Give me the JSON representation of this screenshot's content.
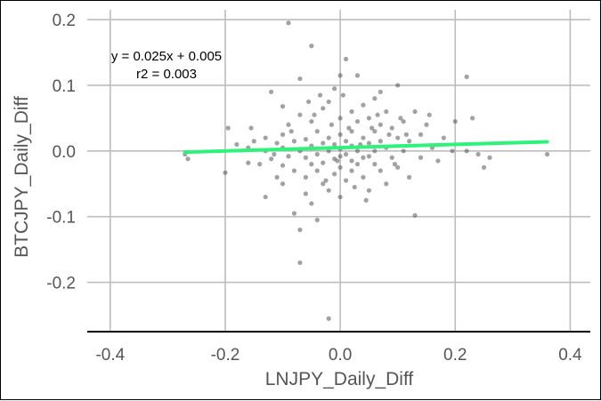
{
  "chart_data": {
    "type": "scatter",
    "title": "",
    "xlabel": "LNJPY_Daily_Diff",
    "ylabel": "BTCJPY_Daily_Diff",
    "xlim": [
      -0.44,
      0.435
    ],
    "ylim": [
      -0.275,
      0.215
    ],
    "x_ticks": [
      -0.4,
      -0.2,
      0.0,
      0.2,
      0.4
    ],
    "x_tick_labels": [
      "-0.4",
      "-0.2",
      "0.0",
      "0.2",
      "0.4"
    ],
    "y_ticks": [
      -0.2,
      -0.1,
      0.0,
      0.1,
      0.2
    ],
    "y_tick_labels": [
      "-0.2",
      "-0.1",
      "0.0",
      "0.1",
      "0.2"
    ],
    "grid": true,
    "equation_label": "y = 0.025x + 0.005",
    "r2_label": "r2 = 0.003",
    "point_color": "#555555",
    "line_color": "#2ef27a",
    "regression": {
      "slope": 0.025,
      "intercept": 0.005,
      "x_start": -0.27,
      "x_end": 0.36
    },
    "points": [
      [
        -0.27,
        -0.005
      ],
      [
        -0.265,
        -0.012
      ],
      [
        -0.195,
        0.035
      ],
      [
        -0.2,
        -0.033
      ],
      [
        -0.18,
        0.01
      ],
      [
        -0.16,
        0.005
      ],
      [
        -0.16,
        -0.018
      ],
      [
        -0.15,
        0.015
      ],
      [
        -0.14,
        -0.02
      ],
      [
        -0.13,
        0.0
      ],
      [
        -0.13,
        0.02
      ],
      [
        -0.13,
        -0.07
      ],
      [
        -0.12,
        0.09
      ],
      [
        -0.12,
        -0.012
      ],
      [
        -0.11,
        0.012
      ],
      [
        -0.11,
        -0.04
      ],
      [
        -0.1,
        0.068
      ],
      [
        -0.1,
        0.005
      ],
      [
        -0.1,
        -0.022
      ],
      [
        -0.1,
        -0.05
      ],
      [
        -0.1,
        0.025
      ],
      [
        -0.09,
        0.04
      ],
      [
        -0.09,
        -0.008
      ],
      [
        -0.08,
        0.015
      ],
      [
        -0.08,
        -0.03
      ],
      [
        -0.08,
        -0.095
      ],
      [
        -0.07,
        0.11
      ],
      [
        -0.07,
        0.055
      ],
      [
        -0.07,
        0.0
      ],
      [
        -0.07,
        -0.12
      ],
      [
        -0.07,
        -0.17
      ],
      [
        -0.06,
        0.018
      ],
      [
        -0.06,
        -0.01
      ],
      [
        -0.06,
        -0.04
      ],
      [
        -0.06,
        -0.065
      ],
      [
        -0.05,
        0.045
      ],
      [
        -0.05,
        0.008
      ],
      [
        -0.05,
        -0.02
      ],
      [
        -0.05,
        -0.08
      ],
      [
        -0.05,
        0.16
      ],
      [
        -0.04,
        0.03
      ],
      [
        -0.04,
        -0.005
      ],
      [
        -0.04,
        -0.03
      ],
      [
        -0.04,
        -0.105
      ],
      [
        -0.03,
        0.065
      ],
      [
        -0.03,
        0.012
      ],
      [
        -0.03,
        -0.018
      ],
      [
        -0.03,
        -0.05
      ],
      [
        -0.02,
        0.075
      ],
      [
        -0.02,
        0.02
      ],
      [
        -0.02,
        0.0
      ],
      [
        -0.02,
        -0.06
      ],
      [
        -0.02,
        -0.255
      ],
      [
        -0.015,
        0.04
      ],
      [
        -0.01,
        0.095
      ],
      [
        -0.01,
        0.01
      ],
      [
        -0.01,
        -0.012
      ],
      [
        -0.01,
        -0.035
      ],
      [
        0.0,
        0.05
      ],
      [
        0.0,
        0.025
      ],
      [
        0.0,
        0.003
      ],
      [
        0.0,
        -0.008
      ],
      [
        0.0,
        -0.025
      ],
      [
        0.0,
        -0.07
      ],
      [
        0.005,
        0.085
      ],
      [
        0.01,
        0.14
      ],
      [
        0.01,
        0.015
      ],
      [
        0.01,
        -0.005
      ],
      [
        0.01,
        -0.045
      ],
      [
        0.02,
        0.06
      ],
      [
        0.02,
        0.03
      ],
      [
        0.02,
        0.008
      ],
      [
        0.02,
        -0.015
      ],
      [
        0.02,
        -0.03
      ],
      [
        0.03,
        0.115
      ],
      [
        0.03,
        0.045
      ],
      [
        0.03,
        0.0
      ],
      [
        0.03,
        -0.02
      ],
      [
        0.04,
        0.07
      ],
      [
        0.04,
        0.02
      ],
      [
        0.04,
        -0.01
      ],
      [
        0.04,
        -0.04
      ],
      [
        0.05,
        0.05
      ],
      [
        0.05,
        0.012
      ],
      [
        0.05,
        -0.008
      ],
      [
        0.05,
        -0.06
      ],
      [
        0.06,
        0.08
      ],
      [
        0.06,
        0.03
      ],
      [
        0.06,
        0.0
      ],
      [
        0.06,
        -0.02
      ],
      [
        0.07,
        0.04
      ],
      [
        0.07,
        0.015
      ],
      [
        0.07,
        -0.03
      ],
      [
        0.08,
        0.06
      ],
      [
        0.08,
        0.005
      ],
      [
        0.08,
        -0.05
      ],
      [
        0.09,
        0.035
      ],
      [
        0.09,
        -0.01
      ],
      [
        0.1,
        0.1
      ],
      [
        0.1,
        0.02
      ],
      [
        0.1,
        -0.025
      ],
      [
        0.11,
        0.045
      ],
      [
        0.11,
        0.0
      ],
      [
        0.12,
        0.015
      ],
      [
        0.12,
        -0.04
      ],
      [
        0.13,
        0.06
      ],
      [
        0.13,
        -0.098
      ],
      [
        0.14,
        0.025
      ],
      [
        0.14,
        -0.01
      ],
      [
        0.15,
        0.04
      ],
      [
        0.16,
        0.005
      ],
      [
        0.17,
        -0.015
      ],
      [
        0.18,
        0.02
      ],
      [
        0.2,
        0.045
      ],
      [
        0.22,
        0.113
      ],
      [
        0.22,
        0.0
      ],
      [
        0.23,
        0.05
      ],
      [
        0.24,
        -0.005
      ],
      [
        0.25,
        -0.025
      ],
      [
        0.26,
        -0.01
      ],
      [
        0.36,
        -0.005
      ],
      [
        -0.09,
        0.195
      ],
      [
        -0.155,
        0.035
      ],
      [
        0.155,
        0.055
      ],
      [
        0.195,
        0.0
      ],
      [
        0.07,
        0.09
      ],
      [
        -0.035,
        0.085
      ],
      [
        0.045,
        -0.075
      ],
      [
        -0.085,
        0.03
      ],
      [
        0.095,
        -0.02
      ],
      [
        0.015,
        0.035
      ],
      [
        -0.005,
        -0.015
      ],
      [
        0.025,
        -0.055
      ],
      [
        0.065,
        0.055
      ],
      [
        -0.045,
        0.055
      ],
      [
        0.085,
        0.025
      ],
      [
        0.105,
        0.05
      ],
      [
        -0.115,
        -0.005
      ],
      [
        0.115,
        0.025
      ],
      [
        0.035,
        0.01
      ],
      [
        -0.025,
        -0.045
      ],
      [
        0.055,
        0.035
      ],
      [
        -0.055,
        0.075
      ],
      [
        0.0,
        0.115
      ]
    ]
  }
}
